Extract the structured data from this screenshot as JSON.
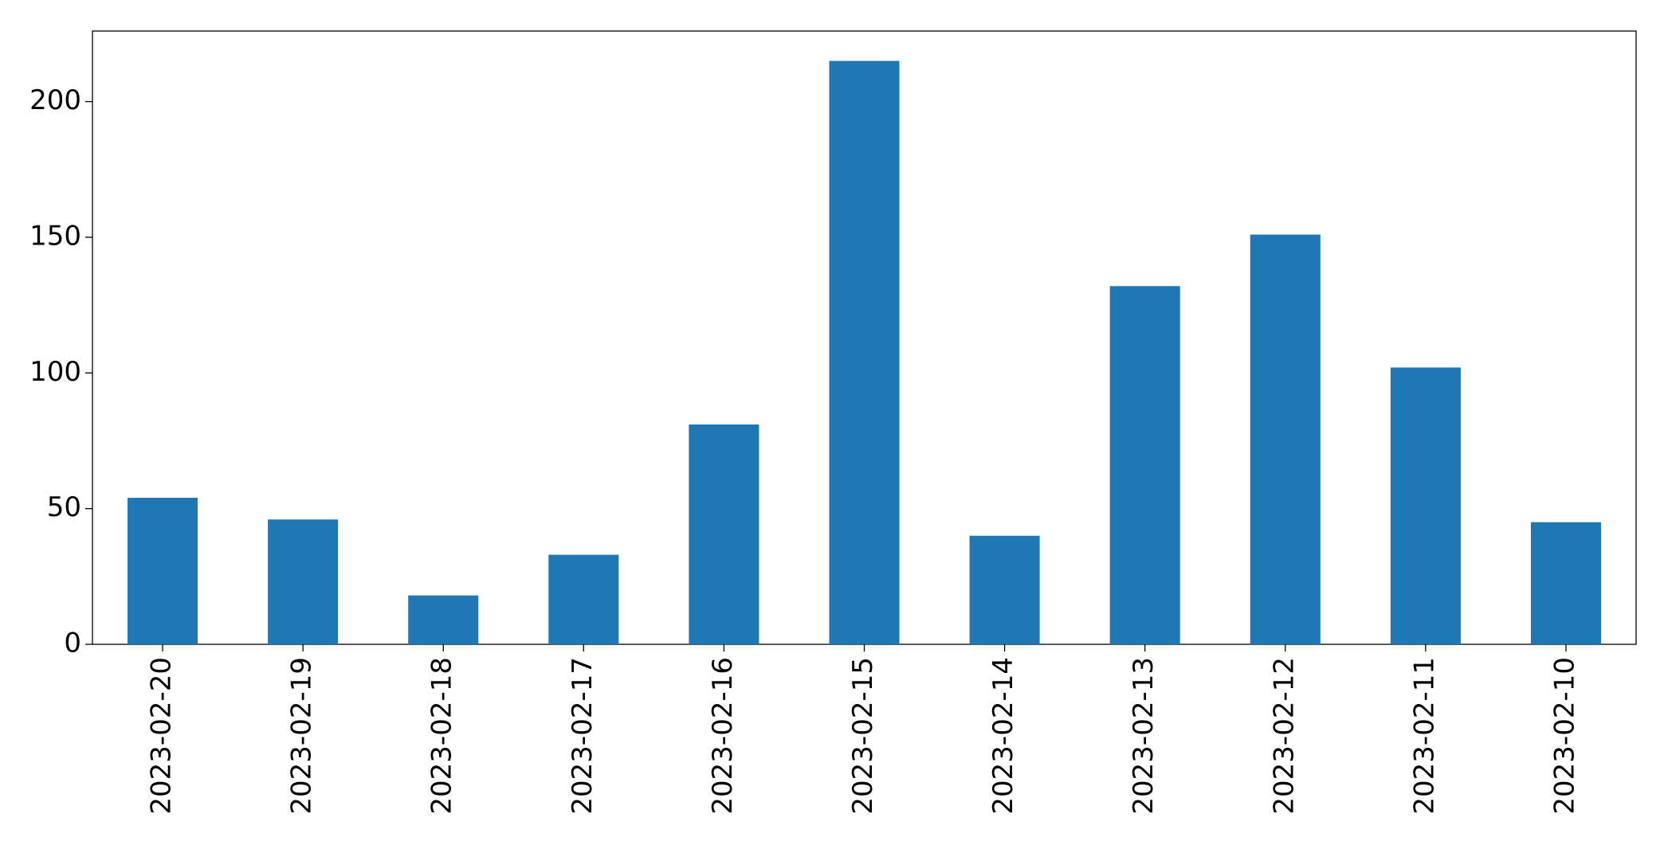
{
  "chart_data": {
    "type": "bar",
    "categories": [
      "2023-02-20",
      "2023-02-19",
      "2023-02-18",
      "2023-02-17",
      "2023-02-16",
      "2023-02-15",
      "2023-02-14",
      "2023-02-13",
      "2023-02-12",
      "2023-02-11",
      "2023-02-10"
    ],
    "values": [
      54,
      46,
      18,
      33,
      81,
      215,
      40,
      132,
      151,
      102,
      45
    ],
    "color": "#1f77b4",
    "ylim": [
      0,
      226
    ],
    "yticks": [
      0,
      50,
      100,
      150,
      200
    ],
    "grid": false
  }
}
